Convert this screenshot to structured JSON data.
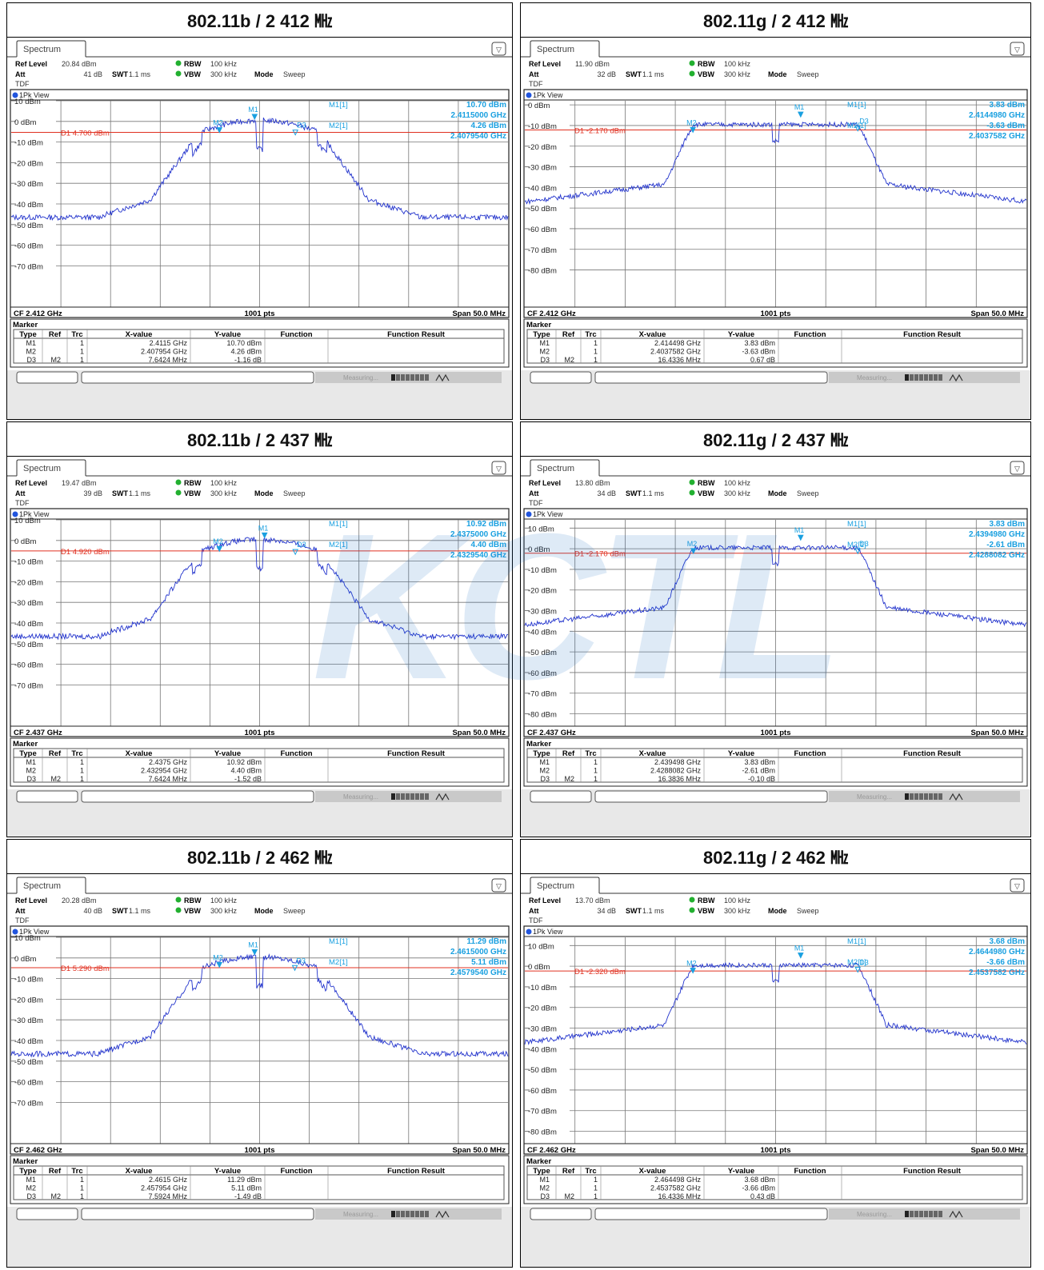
{
  "watermark": "KCTL",
  "common": {
    "tab_label": "Spectrum",
    "ref_level_label": "Ref Level",
    "att_label": "Att",
    "swt_label": "SWT",
    "swt_value": "1.1 ms",
    "rbw_label": "RBW",
    "rbw_value": "100 kHz",
    "vbw_label": "VBW",
    "vbw_value": "300 kHz",
    "mode_label": "Mode",
    "mode_value": "Sweep",
    "tdf_label": "TDF",
    "view_label": "1Pk View",
    "pts_label": "1001 pts",
    "span_label": "Span 50.0 MHz",
    "marker_title": "Marker",
    "table_headers": [
      "Type",
      "Ref",
      "Trc",
      "X-value",
      "Y-value",
      "Function",
      "Function Result"
    ],
    "measuring_label": "Measuring...",
    "colors": {
      "trace": "#2233cc",
      "marker": "#1aa0e0",
      "display_line": "#e03020",
      "grid": "#777777"
    }
  },
  "panels": [
    {
      "title": "802.11b / 2 412 ㎒",
      "ref_level": "20.84 dBm",
      "att": "41 dB",
      "cf_label": "CF 2.412 GHz",
      "display_line": "D1  4.700 dBm",
      "y_ticks": [
        "10 dBm",
        "0 dBm",
        "-10 dBm",
        "-20 dBm",
        "-30 dBm",
        "-40 dBm",
        "-50 dBm",
        "-60 dBm",
        "-70 dBm"
      ],
      "marker_readout": [
        "M1[1]",
        "10.70 dBm",
        "2.4115000 GHz",
        "M2[1]",
        "4.26 dBm",
        "2.4079540 GHz"
      ],
      "table": [
        [
          "M1",
          "",
          "1",
          "2.4115 GHz",
          "10.70 dBm"
        ],
        [
          "M2",
          "",
          "1",
          "2.407954 GHz",
          "4.26 dBm"
        ],
        [
          "D3",
          "M2",
          "1",
          "7.6424 MHz",
          "-1.16 dB"
        ]
      ],
      "chart_data": {
        "type": "line",
        "standard": "802.11b",
        "center_freq_ghz": 2.412,
        "span_mhz": 50,
        "ylim": [
          -80,
          20
        ],
        "display_line_dbm": 4.7,
        "top_dbm": 20,
        "markers": [
          {
            "name": "M1",
            "freq_ghz": 2.4115,
            "level_dbm": 10.7
          },
          {
            "name": "M2",
            "freq_ghz": 2.407954,
            "level_dbm": 4.26
          },
          {
            "name": "D3",
            "ref": "M2",
            "delta_mhz": 7.6424,
            "delta_db": -1.16
          }
        ]
      }
    },
    {
      "title": "802.11g / 2 412 ㎒",
      "ref_level": "11.90 dBm",
      "att": "32 dB",
      "cf_label": "CF 2.412 GHz",
      "display_line": "D1  -2.170 dBm",
      "y_ticks": [
        "0 dBm",
        "-10 dBm",
        "-20 dBm",
        "-30 dBm",
        "-40 dBm",
        "-50 dBm",
        "-60 dBm",
        "-70 dBm",
        "-80 dBm"
      ],
      "marker_readout": [
        "M1[1]",
        "3.83 dBm",
        "2.4144980 GHz",
        "M2[1]",
        "-3.63 dBm",
        "2.4037582 GHz"
      ],
      "table": [
        [
          "M1",
          "",
          "1",
          "2.414498 GHz",
          "3.83 dBm"
        ],
        [
          "M2",
          "",
          "1",
          "2.4037582 GHz",
          "-3.63 dBm"
        ],
        [
          "D3",
          "M2",
          "1",
          "16.4336 MHz",
          "0.67 dB"
        ]
      ],
      "chart_data": {
        "type": "line",
        "standard": "802.11g",
        "center_freq_ghz": 2.412,
        "span_mhz": 50,
        "ylim": [
          -88,
          12
        ],
        "display_line_dbm": -2.17,
        "top_dbm": 10,
        "markers": [
          {
            "name": "M1",
            "freq_ghz": 2.414498,
            "level_dbm": 3.83
          },
          {
            "name": "M2",
            "freq_ghz": 2.4037582,
            "level_dbm": -3.63
          },
          {
            "name": "D3",
            "ref": "M2",
            "delta_mhz": 16.4336,
            "delta_db": 0.67
          }
        ]
      }
    },
    {
      "title": "802.11b / 2 437 ㎒",
      "ref_level": "19.47 dBm",
      "att": "39 dB",
      "cf_label": "CF 2.437 GHz",
      "display_line": "D1  4.920 dBm",
      "y_ticks": [
        "10 dBm",
        "0 dBm",
        "-10 dBm",
        "-20 dBm",
        "-30 dBm",
        "-40 dBm",
        "-50 dBm",
        "-60 dBm",
        "-70 dBm"
      ],
      "marker_readout": [
        "M1[1]",
        "10.92 dBm",
        "2.4375000 GHz",
        "M2[1]",
        "4.40 dBm",
        "2.4329540 GHz"
      ],
      "table": [
        [
          "M1",
          "",
          "1",
          "2.4375 GHz",
          "10.92 dBm"
        ],
        [
          "M2",
          "",
          "1",
          "2.432954 GHz",
          "4.40 dBm"
        ],
        [
          "D3",
          "M2",
          "1",
          "7.6424 MHz",
          "-1.52 dB"
        ]
      ],
      "chart_data": {
        "type": "line",
        "standard": "802.11b",
        "center_freq_ghz": 2.437,
        "span_mhz": 50,
        "ylim": [
          -80,
          20
        ],
        "display_line_dbm": 4.92,
        "top_dbm": 20,
        "markers": [
          {
            "name": "M1",
            "freq_ghz": 2.4375,
            "level_dbm": 10.92
          },
          {
            "name": "M2",
            "freq_ghz": 2.432954,
            "level_dbm": 4.4
          },
          {
            "name": "D3",
            "ref": "M2",
            "delta_mhz": 7.6424,
            "delta_db": -1.52
          }
        ]
      }
    },
    {
      "title": "802.11g / 2 437 ㎒",
      "ref_level": "13.80 dBm",
      "att": "34 dB",
      "cf_label": "CF 2.437 GHz",
      "display_line": "D1  -2.170 dBm",
      "y_ticks": [
        "10 dBm",
        "0 dBm",
        "-10 dBm",
        "-20 dBm",
        "-30 dBm",
        "-40 dBm",
        "-50 dBm",
        "-60 dBm",
        "-70 dBm",
        "-80 dBm"
      ],
      "marker_readout": [
        "M1[1]",
        "3.83 dBm",
        "2.4394980 GHz",
        "M2[1]",
        "-2.61 dBm",
        "2.4288082 GHz"
      ],
      "table": [
        [
          "M1",
          "",
          "1",
          "2.439498 GHz",
          "3.83 dBm"
        ],
        [
          "M2",
          "",
          "1",
          "2.4288082 GHz",
          "-2.61 dBm"
        ],
        [
          "D3",
          "M2",
          "1",
          "16.3836 MHz",
          "-0.10 dB"
        ]
      ],
      "chart_data": {
        "type": "line",
        "standard": "802.11g",
        "center_freq_ghz": 2.437,
        "span_mhz": 50,
        "ylim": [
          -86,
          14
        ],
        "display_line_dbm": -2.17,
        "top_dbm": 10,
        "markers": [
          {
            "name": "M1",
            "freq_ghz": 2.439498,
            "level_dbm": 3.83
          },
          {
            "name": "M2",
            "freq_ghz": 2.4288082,
            "level_dbm": -2.61
          },
          {
            "name": "D3",
            "ref": "M2",
            "delta_mhz": 16.3836,
            "delta_db": -0.1
          }
        ]
      }
    },
    {
      "title": "802.11b / 2 462 ㎒",
      "ref_level": "20.28 dBm",
      "att": "40 dB",
      "cf_label": "CF 2.462 GHz",
      "display_line": "D1  5.290 dBm",
      "y_ticks": [
        "10 dBm",
        "0 dBm",
        "-10 dBm",
        "-20 dBm",
        "-30 dBm",
        "-40 dBm",
        "-50 dBm",
        "-60 dBm",
        "-70 dBm"
      ],
      "marker_readout": [
        "M1[1]",
        "11.29 dBm",
        "2.4615000 GHz",
        "M2[1]",
        "5.11 dBm",
        "2.4579540 GHz"
      ],
      "table": [
        [
          "M1",
          "",
          "1",
          "2.4615 GHz",
          "11.29 dBm"
        ],
        [
          "M2",
          "",
          "1",
          "2.457954 GHz",
          "5.11 dBm"
        ],
        [
          "D3",
          "M2",
          "1",
          "7.5924 MHz",
          "-1.49 dB"
        ]
      ],
      "chart_data": {
        "type": "line",
        "standard": "802.11b",
        "center_freq_ghz": 2.462,
        "span_mhz": 50,
        "ylim": [
          -80,
          20
        ],
        "display_line_dbm": 5.29,
        "top_dbm": 20,
        "markers": [
          {
            "name": "M1",
            "freq_ghz": 2.4615,
            "level_dbm": 11.29
          },
          {
            "name": "M2",
            "freq_ghz": 2.457954,
            "level_dbm": 5.11
          },
          {
            "name": "D3",
            "ref": "M2",
            "delta_mhz": 7.5924,
            "delta_db": -1.49
          }
        ]
      }
    },
    {
      "title": "802.11g / 2 462 ㎒",
      "ref_level": "13.70 dBm",
      "att": "34 dB",
      "cf_label": "CF 2.462 GHz",
      "display_line": "D1  -2.320 dBm",
      "y_ticks": [
        "10 dBm",
        "0 dBm",
        "-10 dBm",
        "-20 dBm",
        "-30 dBm",
        "-40 dBm",
        "-50 dBm",
        "-60 dBm",
        "-70 dBm",
        "-80 dBm"
      ],
      "marker_readout": [
        "M1[1]",
        "3.68 dBm",
        "2.4644980 GHz",
        "M2[1]",
        "-3.66 dBm",
        "2.4537582 GHz"
      ],
      "table": [
        [
          "M1",
          "",
          "1",
          "2.464498 GHz",
          "3.68 dBm"
        ],
        [
          "M2",
          "",
          "1",
          "2.4537582 GHz",
          "-3.66 dBm"
        ],
        [
          "D3",
          "M2",
          "1",
          "16.4336 MHz",
          "0.43 dB"
        ]
      ],
      "chart_data": {
        "type": "line",
        "standard": "802.11g",
        "center_freq_ghz": 2.462,
        "span_mhz": 50,
        "ylim": [
          -86,
          14
        ],
        "display_line_dbm": -2.32,
        "top_dbm": 10,
        "markers": [
          {
            "name": "M1",
            "freq_ghz": 2.464498,
            "level_dbm": 3.68
          },
          {
            "name": "M2",
            "freq_ghz": 2.4537582,
            "level_dbm": -3.66
          },
          {
            "name": "D3",
            "ref": "M2",
            "delta_mhz": 16.4336,
            "delta_db": 0.43
          }
        ]
      }
    }
  ]
}
